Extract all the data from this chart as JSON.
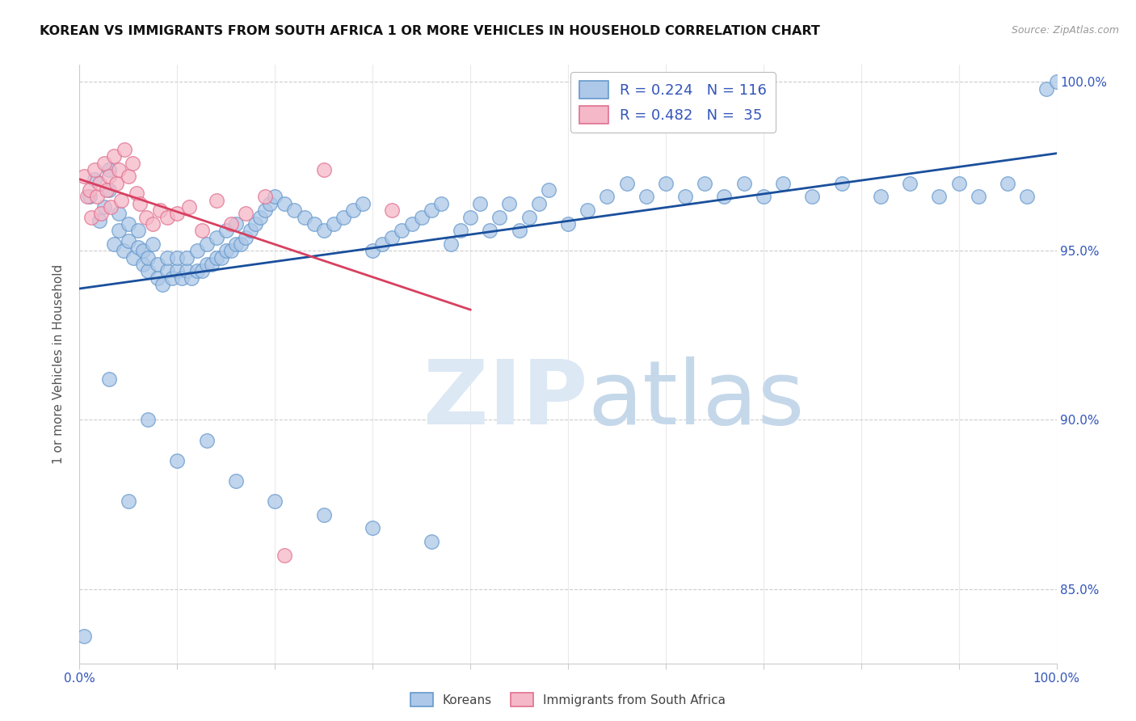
{
  "title": "KOREAN VS IMMIGRANTS FROM SOUTH AFRICA 1 OR MORE VEHICLES IN HOUSEHOLD CORRELATION CHART",
  "source": "Source: ZipAtlas.com",
  "ylabel": "1 or more Vehicles in Household",
  "korean_color": "#adc8e8",
  "korean_edge": "#6699cc",
  "sa_color": "#f5b8c8",
  "sa_edge": "#e07090",
  "trend_korean_color": "#1a4f9c",
  "trend_sa_color": "#d84060",
  "legend_korean_label": "R = 0.224   N = 116",
  "legend_sa_label": "R = 0.482   N =  35",
  "legend_bottom_korean": "Koreans",
  "legend_bottom_sa": "Immigrants from South Africa",
  "korean_x": [
    0.005,
    0.01,
    0.015,
    0.02,
    0.025,
    0.03,
    0.03,
    0.035,
    0.04,
    0.04,
    0.045,
    0.05,
    0.05,
    0.055,
    0.06,
    0.06,
    0.065,
    0.065,
    0.07,
    0.07,
    0.075,
    0.08,
    0.08,
    0.085,
    0.09,
    0.09,
    0.095,
    0.1,
    0.1,
    0.105,
    0.11,
    0.11,
    0.115,
    0.12,
    0.12,
    0.125,
    0.13,
    0.13,
    0.135,
    0.14,
    0.14,
    0.145,
    0.15,
    0.15,
    0.155,
    0.16,
    0.16,
    0.165,
    0.17,
    0.175,
    0.18,
    0.185,
    0.19,
    0.195,
    0.2,
    0.21,
    0.22,
    0.23,
    0.24,
    0.25,
    0.26,
    0.27,
    0.28,
    0.29,
    0.3,
    0.31,
    0.32,
    0.33,
    0.34,
    0.35,
    0.36,
    0.37,
    0.38,
    0.39,
    0.4,
    0.41,
    0.42,
    0.43,
    0.44,
    0.45,
    0.46,
    0.47,
    0.48,
    0.5,
    0.52,
    0.54,
    0.56,
    0.58,
    0.6,
    0.62,
    0.64,
    0.66,
    0.68,
    0.7,
    0.72,
    0.75,
    0.78,
    0.82,
    0.85,
    0.88,
    0.9,
    0.92,
    0.95,
    0.97,
    0.99,
    1.0,
    0.03,
    0.05,
    0.07,
    0.1,
    0.13,
    0.16,
    0.2,
    0.25,
    0.3,
    0.36
  ],
  "korean_y": [
    0.836,
    0.966,
    0.971,
    0.959,
    0.963,
    0.968,
    0.974,
    0.952,
    0.956,
    0.961,
    0.95,
    0.953,
    0.958,
    0.948,
    0.951,
    0.956,
    0.946,
    0.95,
    0.944,
    0.948,
    0.952,
    0.942,
    0.946,
    0.94,
    0.944,
    0.948,
    0.942,
    0.944,
    0.948,
    0.942,
    0.944,
    0.948,
    0.942,
    0.944,
    0.95,
    0.944,
    0.946,
    0.952,
    0.946,
    0.948,
    0.954,
    0.948,
    0.95,
    0.956,
    0.95,
    0.952,
    0.958,
    0.952,
    0.954,
    0.956,
    0.958,
    0.96,
    0.962,
    0.964,
    0.966,
    0.964,
    0.962,
    0.96,
    0.958,
    0.956,
    0.958,
    0.96,
    0.962,
    0.964,
    0.95,
    0.952,
    0.954,
    0.956,
    0.958,
    0.96,
    0.962,
    0.964,
    0.952,
    0.956,
    0.96,
    0.964,
    0.956,
    0.96,
    0.964,
    0.956,
    0.96,
    0.964,
    0.968,
    0.958,
    0.962,
    0.966,
    0.97,
    0.966,
    0.97,
    0.966,
    0.97,
    0.966,
    0.97,
    0.966,
    0.97,
    0.966,
    0.97,
    0.966,
    0.97,
    0.966,
    0.97,
    0.966,
    0.97,
    0.966,
    0.998,
    1.0,
    0.912,
    0.876,
    0.9,
    0.888,
    0.894,
    0.882,
    0.876,
    0.872,
    0.868,
    0.864
  ],
  "sa_x": [
    0.005,
    0.008,
    0.01,
    0.012,
    0.015,
    0.018,
    0.02,
    0.022,
    0.025,
    0.028,
    0.03,
    0.032,
    0.035,
    0.038,
    0.04,
    0.043,
    0.046,
    0.05,
    0.054,
    0.058,
    0.062,
    0.068,
    0.075,
    0.082,
    0.09,
    0.1,
    0.112,
    0.125,
    0.14,
    0.155,
    0.17,
    0.19,
    0.21,
    0.25,
    0.32
  ],
  "sa_y": [
    0.972,
    0.966,
    0.968,
    0.96,
    0.974,
    0.966,
    0.97,
    0.961,
    0.976,
    0.968,
    0.972,
    0.963,
    0.978,
    0.97,
    0.974,
    0.965,
    0.98,
    0.972,
    0.976,
    0.967,
    0.964,
    0.96,
    0.958,
    0.962,
    0.96,
    0.961,
    0.963,
    0.956,
    0.965,
    0.958,
    0.961,
    0.966,
    0.86,
    0.974,
    0.962
  ],
  "xlim": [
    0,
    1.0
  ],
  "ylim": [
    0.828,
    1.005
  ],
  "yticks": [
    0.85,
    0.9,
    0.95,
    1.0
  ],
  "xtick_positions": [
    0.0,
    0.1,
    0.2,
    0.3,
    0.4,
    0.5,
    0.6,
    0.7,
    0.8,
    0.9,
    1.0
  ],
  "xtick_labels": [
    "0.0%",
    "",
    "",
    "",
    "",
    "",
    "",
    "",
    "",
    "",
    "100.0%"
  ],
  "ytick_labels": [
    "85.0%",
    "90.0%",
    "95.0%",
    "100.0%"
  ]
}
